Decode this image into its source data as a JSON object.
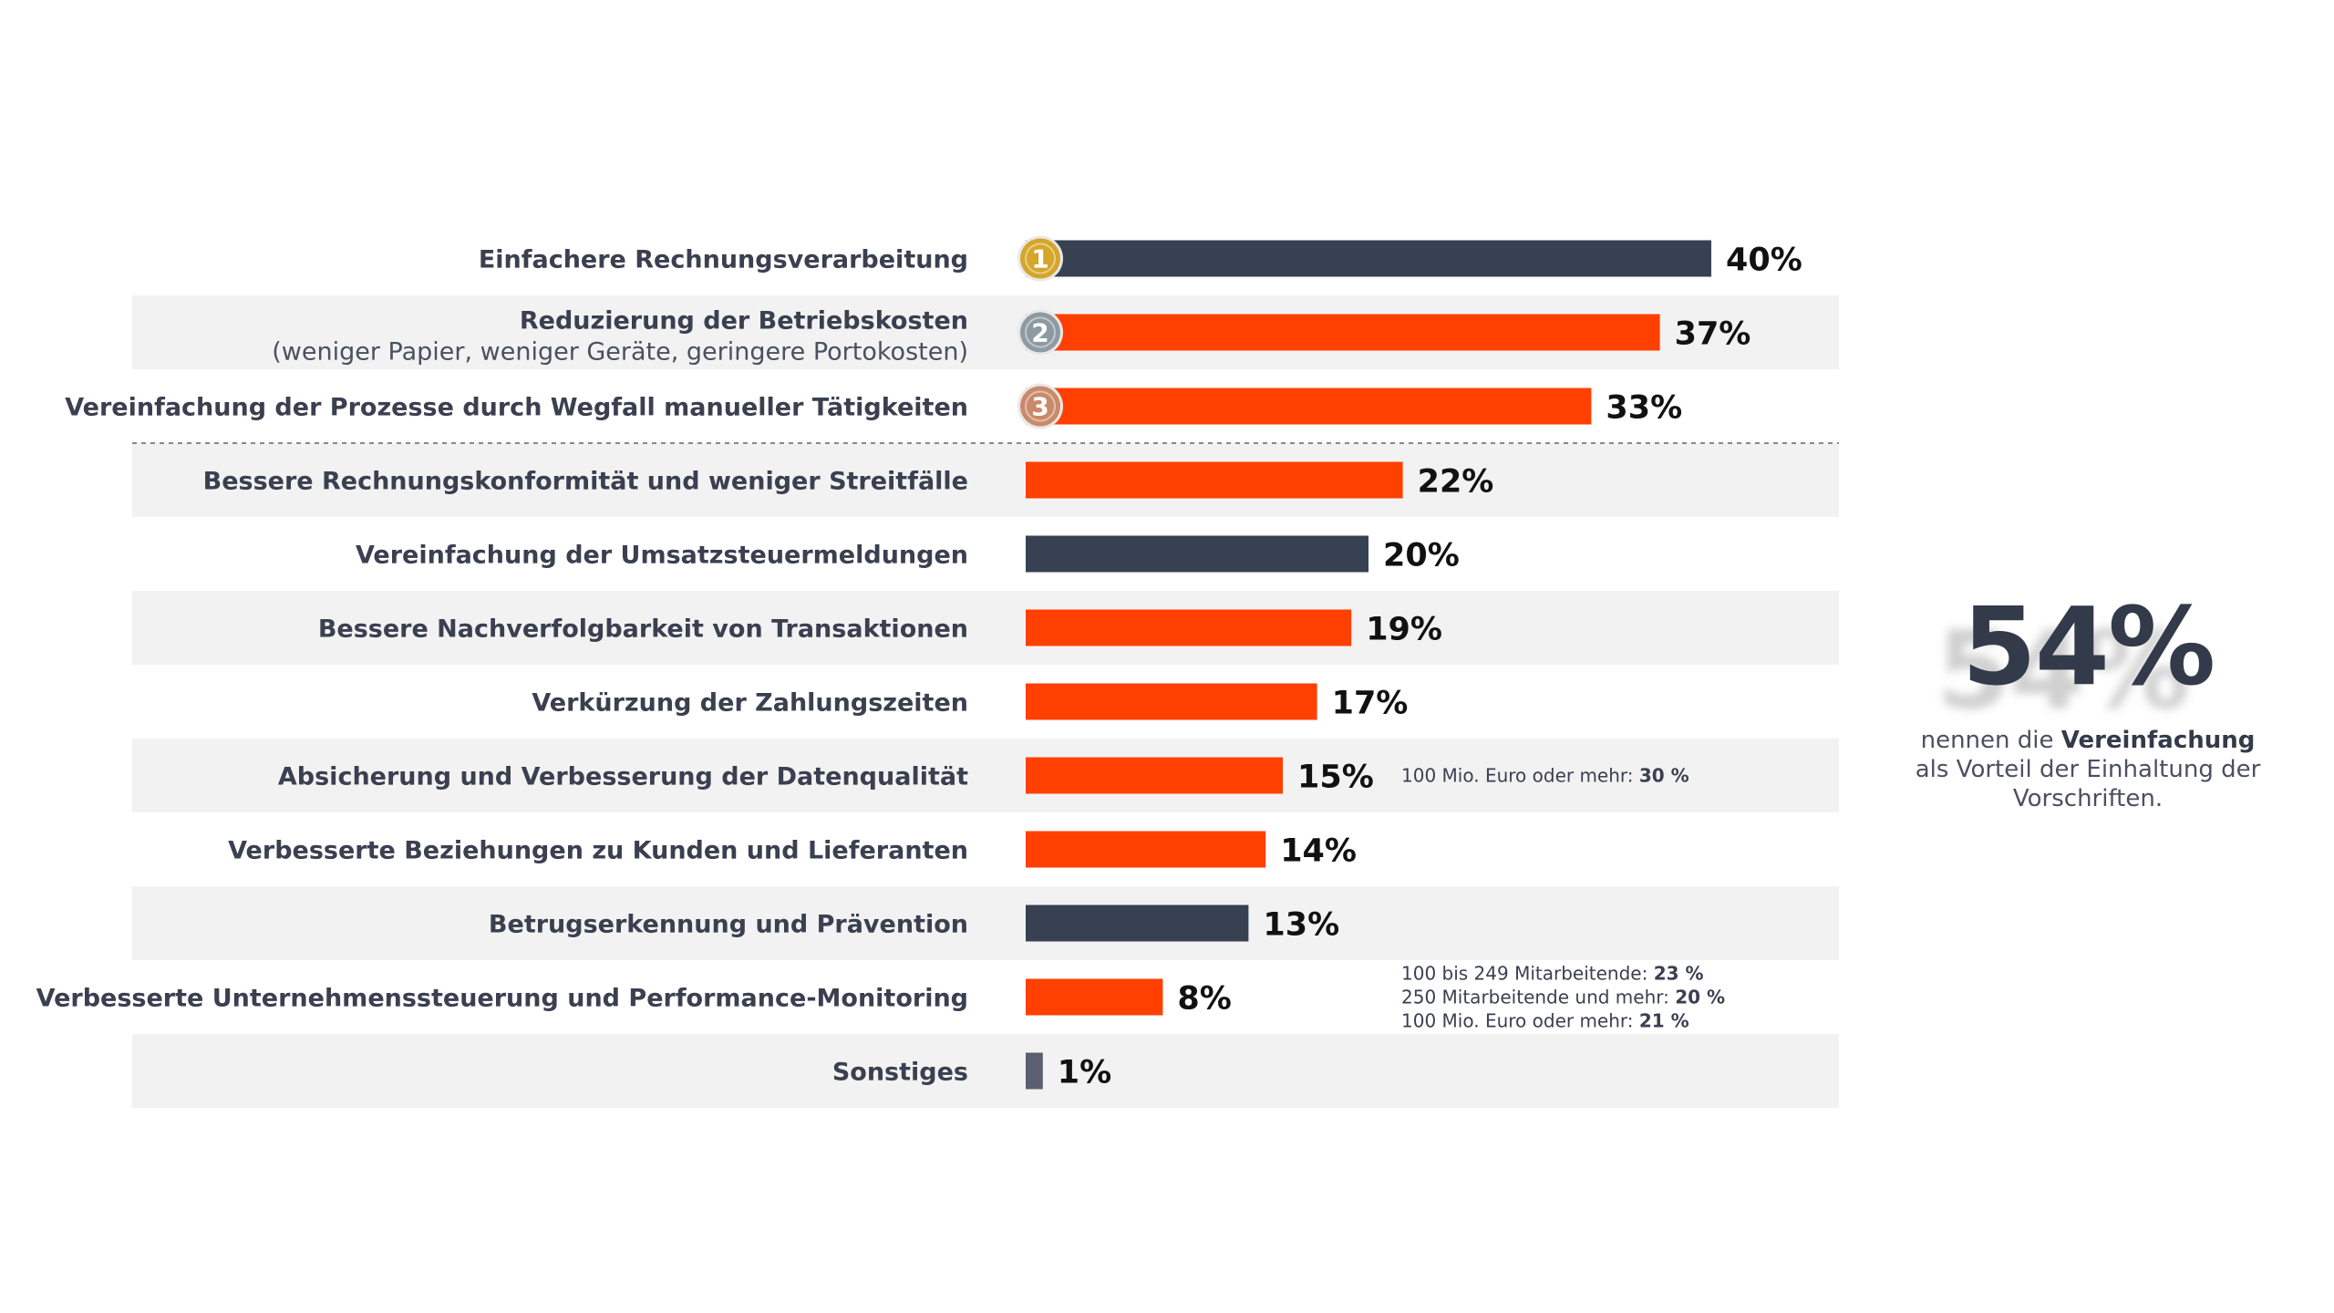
{
  "colors": {
    "dark": "#374151",
    "orange": "#ff4000",
    "gray": "#5a6070",
    "band": "#f2f2f2",
    "gold": "#d4a62a",
    "silver": "#8e9aa2",
    "bronze": "#c98a6a"
  },
  "chart_data": {
    "type": "bar",
    "orientation": "horizontal",
    "categories": [
      "Einfachere Rechnungsverarbeitung",
      "Reduzierung der Betriebskosten",
      "Vereinfachung der Prozesse durch Wegfall manueller Tätigkeiten",
      "Bessere Rechnungskonformität und weniger Streitfälle",
      "Vereinfachung der Umsatzsteuermeldungen",
      "Bessere Nachverfolgbarkeit von Transaktionen",
      "Verkürzung der Zahlungszeiten",
      "Absicherung und Verbesserung der Datenqualität",
      "Verbesserte Beziehungen zu Kunden und Lieferanten",
      "Betrugserkennung und Prävention",
      "Verbesserte Unternehmenssteuerung und Performance-Monitoring",
      "Sonstiges"
    ],
    "sublabels": [
      "",
      "(weniger Papier, weniger Geräte, geringere Portokosten)",
      "",
      "",
      "",
      "",
      "",
      "",
      "",
      "",
      "",
      ""
    ],
    "values": [
      40,
      37,
      33,
      22,
      20,
      19,
      17,
      15,
      14,
      13,
      8,
      1
    ],
    "value_labels": [
      "40%",
      "37%",
      "33%",
      "22%",
      "20%",
      "19%",
      "17%",
      "15%",
      "14%",
      "13%",
      "8%",
      "1%"
    ],
    "bar_colors": [
      "dark",
      "orange",
      "orange",
      "orange",
      "dark",
      "orange",
      "orange",
      "orange",
      "orange",
      "dark",
      "orange",
      "gray"
    ],
    "ranks": [
      {
        "index": 0,
        "label": "1",
        "medal": "gold"
      },
      {
        "index": 1,
        "label": "2",
        "medal": "silver"
      },
      {
        "index": 2,
        "label": "3",
        "medal": "bronze"
      }
    ],
    "notes": [
      {
        "index": 7,
        "lines": [
          {
            "text": "100 Mio. Euro oder mehr: ",
            "bold": "30 %"
          }
        ]
      },
      {
        "index": 10,
        "lines": [
          {
            "text": "100 bis 249 Mitarbeitende: ",
            "bold": "23 %"
          },
          {
            "text": "250 Mitarbeitende und mehr: ",
            "bold": "20 %"
          },
          {
            "text": "100 Mio. Euro oder mehr: ",
            "bold": "21 %"
          }
        ]
      }
    ],
    "xlim": [
      0,
      40
    ],
    "grid": false,
    "legend": "none",
    "separator_after_index": 2
  },
  "highlight": {
    "value": "54%",
    "text_before": "nennen die ",
    "text_bold": "Vereinfachung",
    "text_after": "als Vorteil der Einhaltung der Vorschriften."
  }
}
